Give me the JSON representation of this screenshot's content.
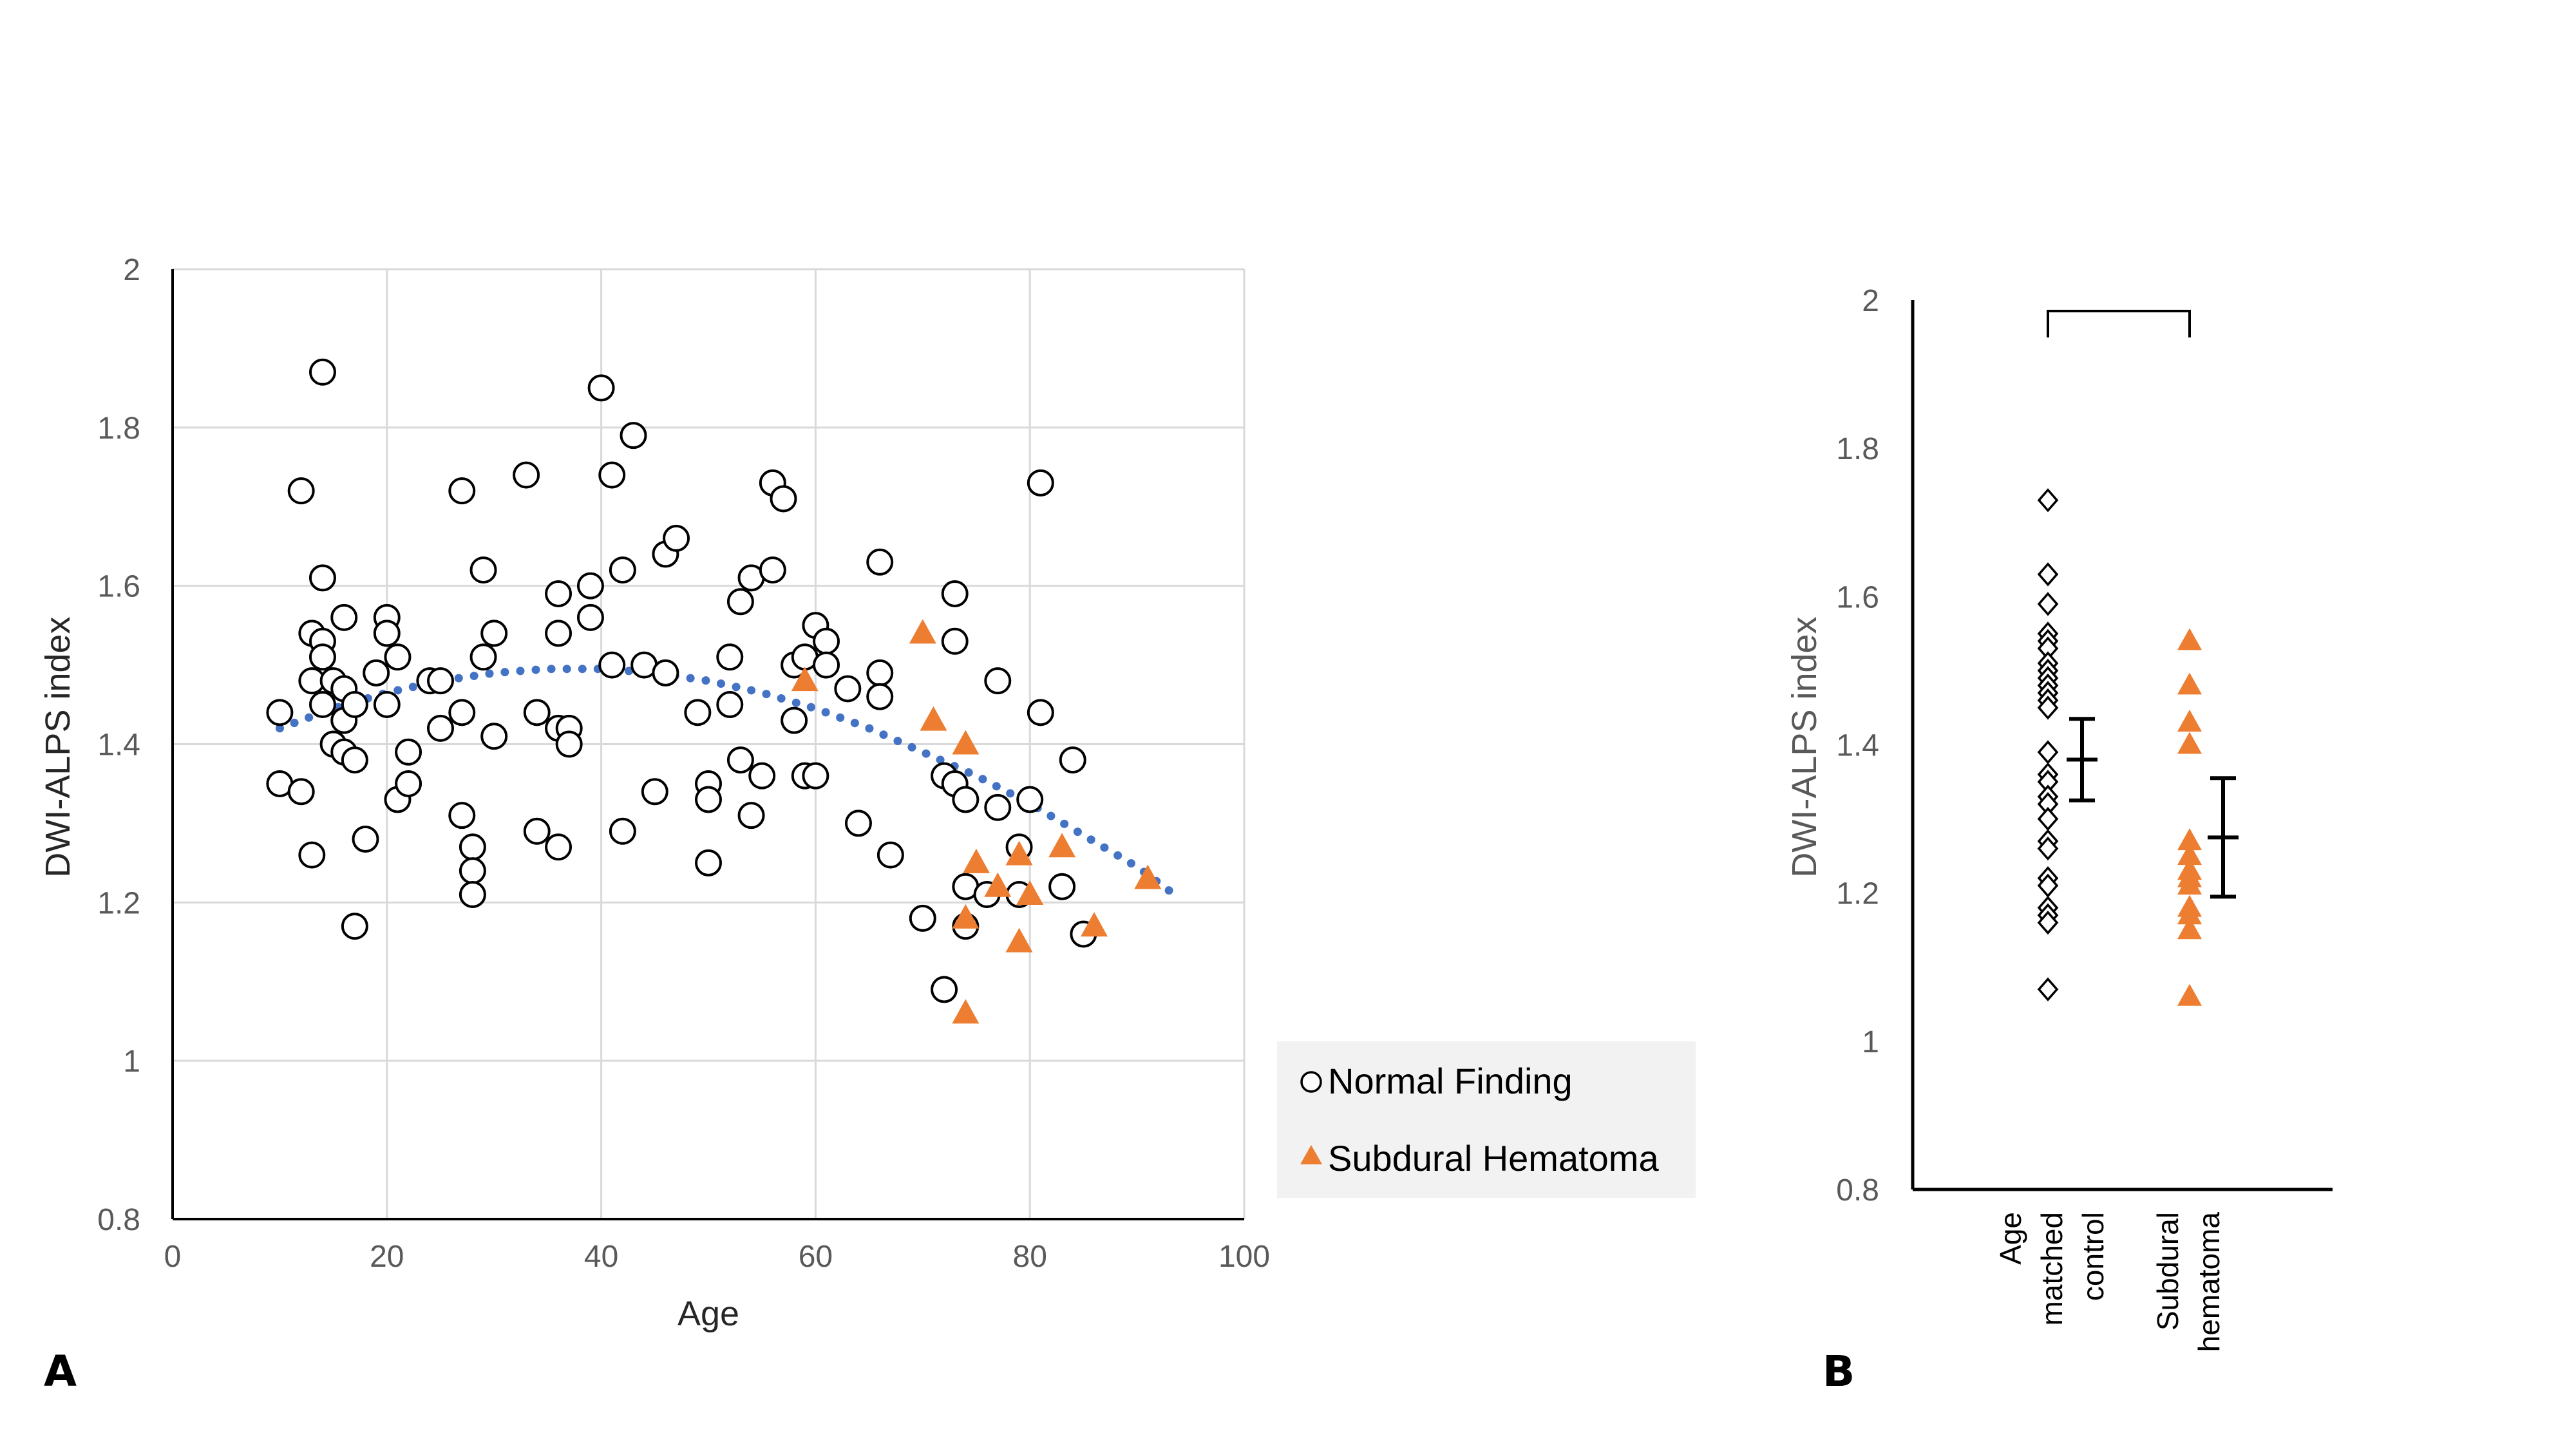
{
  "colors": {
    "normal_marker_stroke": "#000000",
    "hematoma_fill": "#ED7D31",
    "trend": "#4472C4",
    "grid": "#D9D9D9",
    "legend_bg": "#F2F2F2"
  },
  "chart_data": [
    {
      "panel": "A",
      "type": "scatter",
      "xlabel": "Age",
      "ylabel": "DWI-ALPS index",
      "xlim": [
        0,
        100
      ],
      "ylim": [
        0.8,
        2
      ],
      "xticks": [
        0,
        20,
        40,
        60,
        80,
        100
      ],
      "yticks": [
        0.8,
        1,
        1.2,
        1.4,
        1.6,
        1.8,
        2
      ],
      "grid": true,
      "legend_position": "bottom-right-outside",
      "series": [
        {
          "name": "Normal Finding",
          "marker": "circle-open",
          "points": [
            [
              10,
              1.44
            ],
            [
              10,
              1.35
            ],
            [
              12,
              1.72
            ],
            [
              12,
              1.34
            ],
            [
              13,
              1.54
            ],
            [
              13,
              1.48
            ],
            [
              13,
              1.26
            ],
            [
              14,
              1.87
            ],
            [
              14,
              1.61
            ],
            [
              14,
              1.53
            ],
            [
              14,
              1.51
            ],
            [
              14,
              1.45
            ],
            [
              15,
              1.48
            ],
            [
              15,
              1.4
            ],
            [
              16,
              1.56
            ],
            [
              16,
              1.47
            ],
            [
              16,
              1.43
            ],
            [
              16,
              1.39
            ],
            [
              17,
              1.45
            ],
            [
              17,
              1.38
            ],
            [
              17,
              1.17
            ],
            [
              18,
              1.28
            ],
            [
              19,
              1.49
            ],
            [
              20,
              1.56
            ],
            [
              20,
              1.54
            ],
            [
              20,
              1.45
            ],
            [
              21,
              1.51
            ],
            [
              21,
              1.33
            ],
            [
              22,
              1.39
            ],
            [
              22,
              1.35
            ],
            [
              24,
              1.48
            ],
            [
              25,
              1.48
            ],
            [
              25,
              1.42
            ],
            [
              27,
              1.72
            ],
            [
              27,
              1.44
            ],
            [
              27,
              1.31
            ],
            [
              28,
              1.27
            ],
            [
              28,
              1.24
            ],
            [
              28,
              1.21
            ],
            [
              29,
              1.62
            ],
            [
              29,
              1.51
            ],
            [
              30,
              1.54
            ],
            [
              30,
              1.41
            ],
            [
              33,
              1.74
            ],
            [
              34,
              1.44
            ],
            [
              34,
              1.29
            ],
            [
              36,
              1.59
            ],
            [
              36,
              1.54
            ],
            [
              36,
              1.42
            ],
            [
              36,
              1.27
            ],
            [
              37,
              1.42
            ],
            [
              37,
              1.4
            ],
            [
              39,
              1.6
            ],
            [
              39,
              1.56
            ],
            [
              40,
              1.85
            ],
            [
              41,
              1.74
            ],
            [
              41,
              1.5
            ],
            [
              42,
              1.62
            ],
            [
              42,
              1.29
            ],
            [
              43,
              1.79
            ],
            [
              44,
              1.5
            ],
            [
              45,
              1.34
            ],
            [
              46,
              1.64
            ],
            [
              46,
              1.49
            ],
            [
              47,
              1.66
            ],
            [
              49,
              1.44
            ],
            [
              50,
              1.35
            ],
            [
              50,
              1.33
            ],
            [
              50,
              1.25
            ],
            [
              52,
              1.51
            ],
            [
              52,
              1.45
            ],
            [
              53,
              1.58
            ],
            [
              53,
              1.38
            ],
            [
              54,
              1.61
            ],
            [
              54,
              1.31
            ],
            [
              55,
              1.36
            ],
            [
              56,
              1.73
            ],
            [
              56,
              1.62
            ],
            [
              57,
              1.71
            ],
            [
              58,
              1.5
            ],
            [
              58,
              1.43
            ],
            [
              59,
              1.51
            ],
            [
              59,
              1.36
            ],
            [
              60,
              1.55
            ],
            [
              60,
              1.36
            ],
            [
              61,
              1.53
            ],
            [
              61,
              1.5
            ],
            [
              63,
              1.47
            ],
            [
              64,
              1.3
            ],
            [
              66,
              1.63
            ],
            [
              66,
              1.49
            ],
            [
              66,
              1.46
            ],
            [
              67,
              1.26
            ],
            [
              70,
              1.18
            ],
            [
              72,
              1.36
            ],
            [
              72,
              1.09
            ],
            [
              73,
              1.59
            ],
            [
              73,
              1.53
            ],
            [
              73,
              1.35
            ],
            [
              74,
              1.33
            ],
            [
              74,
              1.22
            ],
            [
              74,
              1.17
            ],
            [
              76,
              1.21
            ],
            [
              77,
              1.48
            ],
            [
              77,
              1.32
            ],
            [
              79,
              1.27
            ],
            [
              79,
              1.21
            ],
            [
              80,
              1.33
            ],
            [
              81,
              1.73
            ],
            [
              81,
              1.44
            ],
            [
              83,
              1.22
            ],
            [
              84,
              1.38
            ],
            [
              85,
              1.16
            ]
          ]
        },
        {
          "name": "Subdural Hematoma",
          "marker": "triangle-filled",
          "points": [
            [
              59,
              1.48
            ],
            [
              70,
              1.54
            ],
            [
              71,
              1.43
            ],
            [
              74,
              1.4
            ],
            [
              74,
              1.18
            ],
            [
              74,
              1.06
            ],
            [
              75,
              1.25
            ],
            [
              77,
              1.22
            ],
            [
              79,
              1.26
            ],
            [
              79,
              1.15
            ],
            [
              80,
              1.21
            ],
            [
              83,
              1.27
            ],
            [
              86,
              1.17
            ],
            [
              91,
              1.23
            ]
          ]
        }
      ],
      "trendline": {
        "type": "polynomial",
        "style": "dotted",
        "x_range": [
          10,
          93
        ],
        "points": [
          [
            10,
            1.42
          ],
          [
            15,
            1.445
          ],
          [
            20,
            1.465
          ],
          [
            25,
            1.48
          ],
          [
            30,
            1.49
          ],
          [
            35,
            1.495
          ],
          [
            40,
            1.495
          ],
          [
            45,
            1.49
          ],
          [
            50,
            1.48
          ],
          [
            55,
            1.465
          ],
          [
            60,
            1.445
          ],
          [
            65,
            1.42
          ],
          [
            70,
            1.39
          ],
          [
            75,
            1.36
          ],
          [
            80,
            1.325
          ],
          [
            85,
            1.285
          ],
          [
            90,
            1.245
          ],
          [
            93,
            1.215
          ]
        ]
      }
    },
    {
      "panel": "B",
      "type": "scatter",
      "ylabel": "DWI-ALPS index",
      "ylim": [
        0.8,
        2
      ],
      "yticks": [
        0.8,
        1,
        1.2,
        1.4,
        1.6,
        1.8,
        2
      ],
      "grid": false,
      "categories": [
        [
          "Age",
          "matched",
          "control"
        ],
        [
          "Subdural",
          "hematoma"
        ]
      ],
      "significance_bracket": true,
      "series": [
        {
          "name": "Age matched control",
          "marker": "diamond-open",
          "values": [
            1.73,
            1.63,
            1.59,
            1.55,
            1.54,
            1.53,
            1.51,
            1.5,
            1.49,
            1.48,
            1.47,
            1.46,
            1.45,
            1.39,
            1.36,
            1.35,
            1.33,
            1.32,
            1.3,
            1.27,
            1.26,
            1.22,
            1.21,
            1.18,
            1.17,
            1.16,
            1.07
          ],
          "mean": 1.38,
          "error_low": 1.325,
          "error_high": 1.435
        },
        {
          "name": "Subdural hematoma",
          "marker": "triangle-filled",
          "values": [
            1.54,
            1.48,
            1.43,
            1.4,
            1.27,
            1.25,
            1.23,
            1.22,
            1.21,
            1.18,
            1.17,
            1.15,
            1.06
          ],
          "mean": 1.275,
          "error_low": 1.195,
          "error_high": 1.355
        }
      ]
    }
  ],
  "legend": {
    "items": [
      {
        "label": "Normal Finding",
        "marker": "circle-open"
      },
      {
        "label": "Subdural Hematoma",
        "marker": "triangle-filled"
      }
    ]
  },
  "panel_labels": {
    "a": "A",
    "b": "B"
  }
}
